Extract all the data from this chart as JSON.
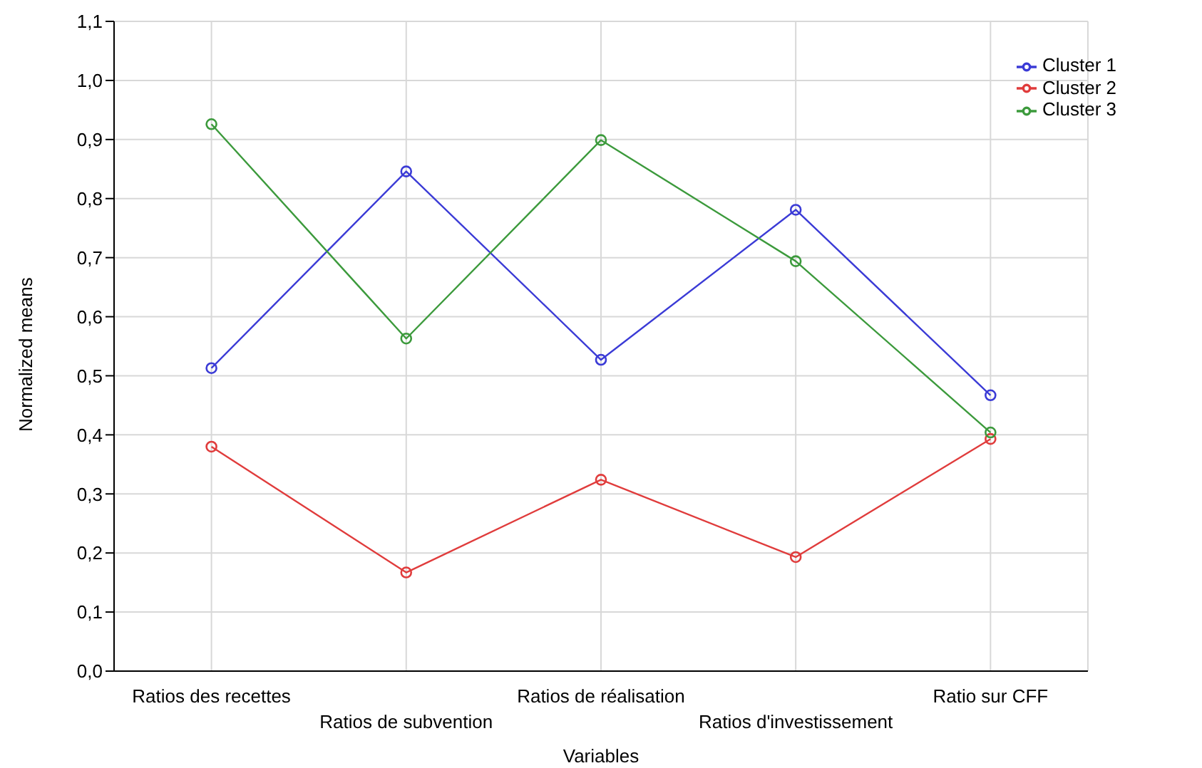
{
  "chart_data": {
    "type": "line",
    "xlabel": "Variables",
    "ylabel": "Normalized means",
    "categories": [
      "Ratios des recettes",
      "Ratios de subvention",
      "Ratios de réalisation",
      "Ratios d'investissement",
      "Ratio sur CFF"
    ],
    "series": [
      {
        "name": "Cluster 1",
        "color": "#3b3bd6",
        "values": [
          0.513,
          0.846,
          0.527,
          0.781,
          0.467
        ]
      },
      {
        "name": "Cluster 2",
        "color": "#e03c3c",
        "values": [
          0.38,
          0.167,
          0.324,
          0.193,
          0.393
        ]
      },
      {
        "name": "Cluster 3",
        "color": "#3c9a3c",
        "values": [
          0.926,
          0.563,
          0.899,
          0.694,
          0.404
        ]
      }
    ],
    "ylim": [
      0,
      1.1
    ],
    "yticks": [
      {
        "value": 0,
        "label": "0,0"
      },
      {
        "value": 0.1,
        "label": "0,1"
      },
      {
        "value": 0.2,
        "label": "0,2"
      },
      {
        "value": 0.3,
        "label": "0,3"
      },
      {
        "value": 0.4,
        "label": "0,4"
      },
      {
        "value": 0.5,
        "label": "0,5"
      },
      {
        "value": 0.6,
        "label": "0,6"
      },
      {
        "value": 0.7,
        "label": "0,7"
      },
      {
        "value": 0.8,
        "label": "0,8"
      },
      {
        "value": 0.9,
        "label": "0,9"
      },
      {
        "value": 1.0,
        "label": "1,0"
      },
      {
        "value": 1.1,
        "label": "1,1"
      }
    ],
    "grid": true,
    "legend": "top right",
    "marker": "circle",
    "line_style": "solid"
  }
}
